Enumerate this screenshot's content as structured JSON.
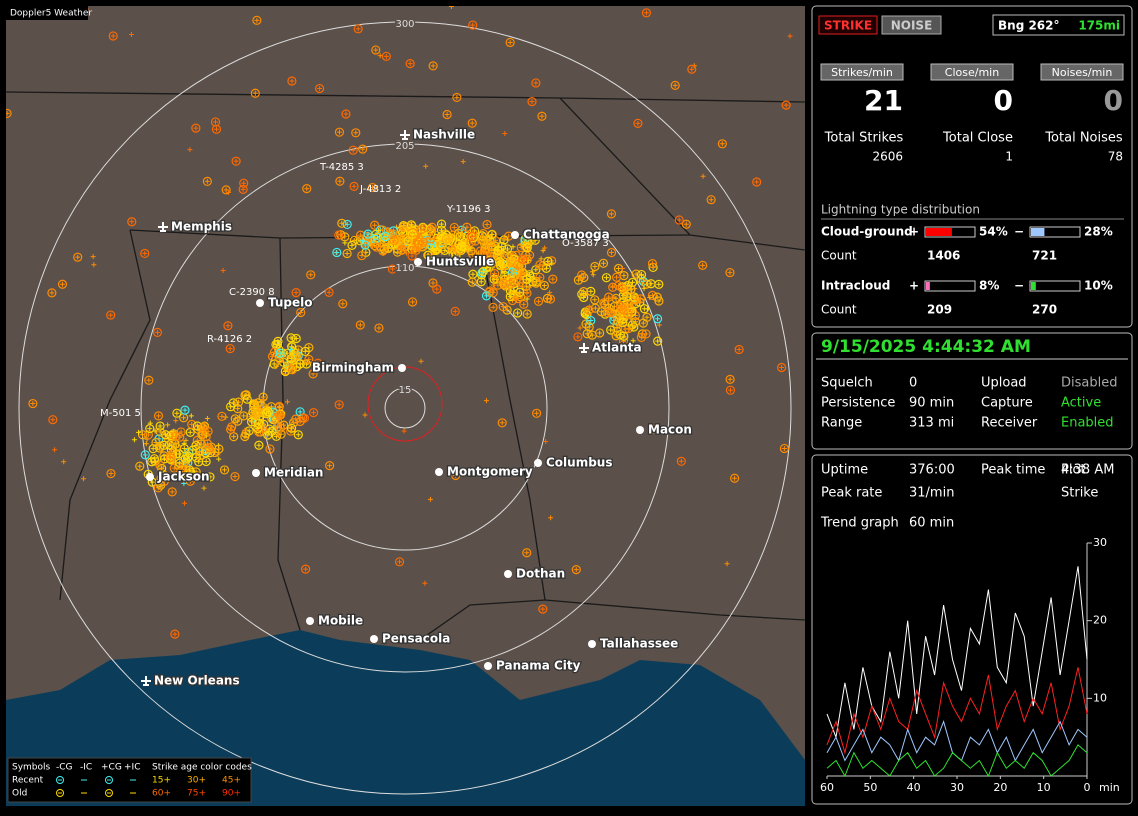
{
  "map": {
    "title": "Doppler5 Weather",
    "range_rings": [
      "300",
      "205",
      "110",
      "15"
    ],
    "cities": [
      "Nashville",
      "Memphis",
      "Chattanooga",
      "Huntsville",
      "Tupelo",
      "Birmingham",
      "Atlanta",
      "Macon",
      "Jackson",
      "Meridian",
      "Montgomery",
      "Columbus",
      "Dothan",
      "Mobile",
      "Pensacola",
      "Tallahassee",
      "Panama City",
      "New Orleans"
    ],
    "storm_tags": [
      "T-4285 3",
      "J-4813 2",
      "Y-1196 3",
      "O-3587 3",
      "C-2390 8",
      "R-4126 2",
      "M-501 5"
    ],
    "legend": {
      "symbols_label": "Symbols",
      "symbols": [
        "-CG",
        "-IC",
        "+CG",
        "+IC"
      ],
      "age_label": "Strike age color codes",
      "rows": [
        "Recent",
        "Old"
      ],
      "ages": [
        "15+",
        "30+",
        "45+",
        "60+",
        "75+",
        "90+"
      ]
    }
  },
  "counters": {
    "mode_buttons": [
      "STRIKE",
      "NOISE"
    ],
    "bearing": "Bng 262°",
    "distance": "175mi",
    "headers": [
      "Strikes/min",
      "Close/min",
      "Noises/min"
    ],
    "rates": [
      21,
      0,
      0
    ],
    "total_labels": [
      "Total Strikes",
      "Total Close",
      "Total Noises"
    ],
    "totals": [
      2606,
      1,
      78
    ]
  },
  "distribution": {
    "title": "Lightning type distribution",
    "count_label": "Count",
    "rows": [
      {
        "name": "Cloud-ground",
        "parts": [
          {
            "sign": "+",
            "percent": 54,
            "percent_label": "54%",
            "count": 1406
          },
          {
            "sign": "−",
            "percent": 28,
            "percent_label": "28%",
            "count": 721
          }
        ]
      },
      {
        "name": "Intracloud",
        "parts": [
          {
            "sign": "+",
            "percent": 8,
            "percent_label": "8%",
            "count": 209
          },
          {
            "sign": "−",
            "percent": 10,
            "percent_label": "10%",
            "count": 270
          }
        ]
      }
    ]
  },
  "status": {
    "datetime": "9/15/2025 4:44:32 AM",
    "rows": [
      [
        "Squelch",
        "0",
        "Upload",
        "Disabled"
      ],
      [
        "Persistence",
        "90 min",
        "Capture",
        "Active"
      ],
      [
        "Range",
        "313 mi",
        "Receiver",
        "Enabled"
      ]
    ]
  },
  "stats": {
    "rows": [
      [
        "Uptime",
        "376:00",
        "Peak time",
        "4:38 AM",
        "Plot"
      ],
      [
        "Peak rate",
        "31/min",
        "",
        "",
        "Strike"
      ]
    ],
    "trend_label": "Trend graph",
    "trend_value": "60 min"
  },
  "trend": {
    "type": "line",
    "xlim": [
      60,
      0
    ],
    "xticks": [
      60,
      50,
      40,
      30,
      20,
      10,
      0
    ],
    "x_unit": "min",
    "ylim": [
      0,
      30
    ],
    "yticks": [
      10,
      20,
      30
    ],
    "series": [
      {
        "color": "#ffffff",
        "values": [
          8,
          5,
          12,
          6,
          14,
          9,
          7,
          16,
          10,
          20,
          8,
          18,
          13,
          22,
          15,
          11,
          19,
          17,
          24,
          14,
          12,
          21,
          18,
          9,
          16,
          23,
          13,
          20,
          27,
          15
        ]
      },
      {
        "color": "#ff2020",
        "values": [
          4,
          7,
          3,
          8,
          5,
          9,
          6,
          10,
          7,
          6,
          11,
          8,
          5,
          12,
          9,
          7,
          10,
          8,
          13,
          6,
          9,
          11,
          7,
          10,
          8,
          12,
          6,
          9,
          14,
          8
        ]
      },
      {
        "color": "#9ec8ff",
        "values": [
          3,
          5,
          2,
          4,
          6,
          3,
          5,
          4,
          2,
          6,
          3,
          5,
          4,
          7,
          3,
          2,
          5,
          4,
          6,
          3,
          5,
          2,
          4,
          6,
          3,
          5,
          7,
          4,
          6,
          5
        ]
      },
      {
        "color": "#30e030",
        "values": [
          1,
          2,
          0,
          3,
          1,
          2,
          1,
          0,
          2,
          3,
          1,
          2,
          0,
          1,
          3,
          2,
          1,
          2,
          0,
          3,
          1,
          2,
          1,
          3,
          2,
          0,
          1,
          2,
          4,
          3
        ]
      }
    ]
  }
}
